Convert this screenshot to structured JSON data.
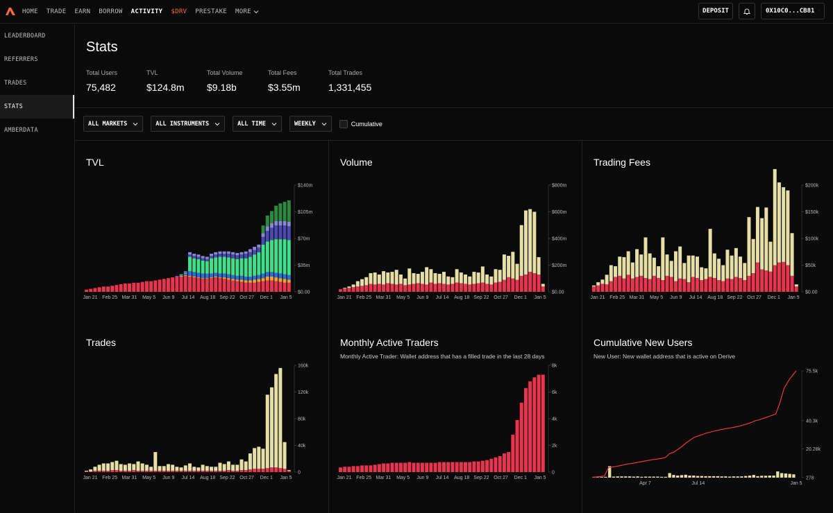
{
  "nav": {
    "items": [
      "HOME",
      "TRADE",
      "EARN",
      "BORROW",
      "ACTIVITY",
      "$DRV",
      "PRESTAKE",
      "MORE"
    ],
    "active": "ACTIVITY"
  },
  "topright": {
    "deposit": "DEPOSIT",
    "wallet": "0X10C0...CB81"
  },
  "sidebar": {
    "items": [
      "LEADERBOARD",
      "REFERRERS",
      "TRADES",
      "STATS",
      "AMBERDATA"
    ],
    "active": "STATS"
  },
  "page": {
    "title": "Stats"
  },
  "stats": [
    {
      "label": "Total Users",
      "value": "75,482"
    },
    {
      "label": "TVL",
      "value": "$124.8m"
    },
    {
      "label": "Total Volume",
      "value": "$9.18b"
    },
    {
      "label": "Total Fees",
      "value": "$3.55m"
    },
    {
      "label": "Total Trades",
      "value": "1,331,455"
    }
  ],
  "filters": {
    "markets": "ALL MARKETS",
    "instruments": "ALL INSTRUMENTS",
    "time": "ALL TIME",
    "interval": "WEEKLY",
    "cumulative": "Cumulative"
  },
  "colors": {
    "red": "#e8344e",
    "cream": "#e6dfa6",
    "green": "#2b8a3e",
    "mint": "#3fe08b",
    "indigo": "#4b4ab0",
    "lavender": "#8c86d6",
    "orange": "#f2a233",
    "blue": "#2d6fd6"
  },
  "chart_data": [
    {
      "id": "tvl",
      "type": "bar",
      "stacked": true,
      "title": "TVL",
      "subtitle": "",
      "xticks": [
        "Jan 21",
        "Feb 25",
        "Mar 31",
        "May 5",
        "Jun 9",
        "Jul 14",
        "Aug 18",
        "Sep 22",
        "Oct 27",
        "Dec 1",
        "Jan 5"
      ],
      "yticks": [
        "$140m",
        "$105m",
        "$70m",
        "$35m",
        "$0.00"
      ],
      "ymax": 140,
      "series": [
        {
          "name": "red",
          "color": "#e8344e",
          "values": [
            3,
            4,
            5,
            6,
            7,
            7,
            8,
            9,
            10,
            11,
            11,
            12,
            12,
            13,
            14,
            14,
            15,
            16,
            17,
            18,
            19,
            20,
            20,
            21,
            20,
            19,
            18,
            17,
            17,
            18,
            19,
            18,
            17,
            16,
            15,
            14,
            13,
            12,
            12,
            12,
            13,
            14,
            15,
            15,
            14,
            13,
            12,
            12
          ]
        },
        {
          "name": "orange",
          "color": "#f2a233",
          "values": [
            0,
            0,
            0,
            0,
            0,
            0,
            0,
            0,
            0,
            0,
            0,
            0,
            0,
            0,
            0,
            0,
            0,
            0,
            0,
            0,
            0,
            0,
            1,
            1,
            1,
            1,
            1,
            1,
            1,
            1,
            1,
            1,
            2,
            2,
            2,
            2,
            3,
            3,
            3,
            4,
            4,
            4,
            5,
            5,
            5,
            5,
            5,
            4
          ]
        },
        {
          "name": "blue",
          "color": "#2d6fd6",
          "values": [
            0,
            0,
            0,
            0,
            0,
            0,
            0,
            0,
            0,
            0,
            0,
            0,
            0,
            0,
            0,
            0,
            0,
            0,
            0,
            0,
            0,
            1,
            1,
            2,
            6,
            6,
            6,
            6,
            6,
            5,
            5,
            5,
            5,
            5,
            5,
            5,
            5,
            5,
            5,
            5,
            5,
            6,
            6,
            6,
            6,
            6,
            6,
            6
          ]
        },
        {
          "name": "mint",
          "color": "#3fe08b",
          "values": [
            0,
            0,
            0,
            0,
            0,
            0,
            0,
            0,
            0,
            0,
            0,
            0,
            0,
            0,
            0,
            0,
            0,
            0,
            0,
            0,
            0,
            0,
            1,
            1,
            19,
            18,
            18,
            17,
            16,
            20,
            20,
            22,
            22,
            22,
            22,
            22,
            23,
            24,
            26,
            28,
            30,
            38,
            40,
            42,
            44,
            45,
            46,
            46
          ]
        },
        {
          "name": "indigo",
          "color": "#4b4ab0",
          "values": [
            0,
            0,
            0,
            0,
            0,
            0,
            0,
            0,
            0,
            0,
            0,
            0,
            0,
            0,
            0,
            0,
            0,
            0,
            0,
            0,
            0,
            0,
            0,
            1,
            3,
            3,
            3,
            3,
            3,
            3,
            4,
            4,
            4,
            5,
            5,
            5,
            5,
            6,
            6,
            6,
            6,
            10,
            14,
            16,
            18,
            18,
            18,
            18
          ]
        },
        {
          "name": "lavender",
          "color": "#8c86d6",
          "values": [
            0,
            0,
            0,
            0,
            0,
            0,
            0,
            0,
            0,
            0,
            0,
            0,
            0,
            0,
            0,
            0,
            0,
            0,
            0,
            0,
            0,
            0,
            0,
            1,
            3,
            3,
            3,
            3,
            3,
            3,
            3,
            3,
            3,
            3,
            3,
            3,
            3,
            3,
            4,
            4,
            4,
            5,
            6,
            6,
            6,
            6,
            6,
            6
          ]
        },
        {
          "name": "green",
          "color": "#2b8a3e",
          "values": [
            0,
            0,
            0,
            0,
            0,
            0,
            0,
            0,
            0,
            0,
            0,
            0,
            0,
            0,
            0,
            0,
            0,
            0,
            0,
            0,
            0,
            0,
            0,
            0,
            0,
            0,
            0,
            0,
            0,
            0,
            0,
            0,
            0,
            0,
            0,
            0,
            0,
            0,
            0,
            0,
            0,
            10,
            14,
            16,
            20,
            23,
            25,
            28
          ]
        }
      ]
    },
    {
      "id": "volume",
      "type": "bar",
      "stacked": true,
      "title": "Volume",
      "subtitle": "",
      "xticks": [
        "Jan 21",
        "Feb 25",
        "Mar 31",
        "May 5",
        "Jun 9",
        "Jul 14",
        "Aug 18",
        "Sep 22",
        "Oct 27",
        "Dec 1",
        "Jan 5"
      ],
      "yticks": [
        "$800m",
        "$600m",
        "$400m",
        "$200m",
        "$0.00"
      ],
      "ymax": 800,
      "series": [
        {
          "name": "red",
          "color": "#e8344e",
          "values": [
            20,
            25,
            30,
            35,
            40,
            45,
            50,
            60,
            55,
            60,
            55,
            65,
            60,
            55,
            60,
            50,
            55,
            60,
            65,
            60,
            55,
            70,
            60,
            65,
            60,
            55,
            60,
            70,
            65,
            60,
            55,
            60,
            65,
            70,
            60,
            55,
            70,
            75,
            90,
            110,
            100,
            90,
            120,
            130,
            150,
            140,
            130,
            40
          ]
        },
        {
          "name": "cream",
          "color": "#e6dfa6",
          "values": [
            0,
            5,
            10,
            20,
            40,
            50,
            60,
            80,
            90,
            70,
            100,
            80,
            90,
            110,
            70,
            50,
            120,
            80,
            70,
            90,
            130,
            100,
            80,
            70,
            90,
            60,
            50,
            100,
            80,
            70,
            60,
            90,
            80,
            120,
            70,
            60,
            100,
            90,
            190,
            160,
            200,
            120,
            380,
            480,
            470,
            460,
            130,
            20
          ]
        }
      ]
    },
    {
      "id": "fees",
      "type": "bar",
      "stacked": true,
      "title": "Trading Fees",
      "subtitle": "",
      "xticks": [
        "Jan 21",
        "Feb 25",
        "Mar 31",
        "May 5",
        "Jun 9",
        "Jul 14",
        "Aug 18",
        "Sep 22",
        "Oct 27",
        "Dec 1",
        "Jan 5"
      ],
      "yticks": [
        "$200k",
        "$150k",
        "$100k",
        "$50k",
        "$0.00"
      ],
      "ymax": 200,
      "series": [
        {
          "name": "red",
          "color": "#e8344e",
          "values": [
            10,
            12,
            15,
            14,
            20,
            28,
            30,
            25,
            32,
            25,
            28,
            30,
            26,
            24,
            30,
            26,
            22,
            30,
            28,
            20,
            25,
            24,
            18,
            28,
            26,
            22,
            24,
            28,
            26,
            22,
            20,
            25,
            24,
            28,
            26,
            22,
            30,
            35,
            55,
            42,
            40,
            38,
            50,
            55,
            56,
            50,
            30,
            10
          ]
        },
        {
          "name": "cream",
          "color": "#e6dfa6",
          "values": [
            2,
            6,
            8,
            18,
            30,
            20,
            36,
            40,
            44,
            30,
            52,
            40,
            76,
            48,
            34,
            22,
            80,
            40,
            30,
            56,
            60,
            30,
            50,
            40,
            40,
            24,
            20,
            90,
            46,
            40,
            30,
            54,
            44,
            54,
            40,
            32,
            110,
            64,
            104,
            96,
            118,
            56,
            180,
            150,
            140,
            140,
            80,
            4
          ]
        }
      ]
    },
    {
      "id": "trades",
      "type": "bar",
      "stacked": true,
      "title": "Trades",
      "subtitle": "",
      "xticks": [
        "Jan 21",
        "Feb 25",
        "Mar 31",
        "May 5",
        "Jun 9",
        "Jul 14",
        "Aug 18",
        "Sep 22",
        "Oct 27",
        "Dec 1",
        "Jan 5"
      ],
      "yticks": [
        "160k",
        "120k",
        "80k",
        "40k",
        "0"
      ],
      "ymax": 160,
      "series": [
        {
          "name": "red",
          "color": "#e8344e",
          "values": [
            1,
            1,
            2,
            2,
            2,
            2,
            3,
            3,
            2,
            2,
            2,
            3,
            2,
            2,
            2,
            2,
            2,
            2,
            2,
            2,
            2,
            2,
            2,
            2,
            2,
            2,
            2,
            2,
            2,
            2,
            2,
            2,
            2,
            3,
            2,
            2,
            3,
            3,
            4,
            5,
            5,
            5,
            6,
            7,
            7,
            6,
            5,
            2
          ]
        },
        {
          "name": "cream",
          "color": "#e6dfa6",
          "values": [
            1,
            3,
            6,
            9,
            11,
            11,
            12,
            14,
            10,
            9,
            11,
            9,
            14,
            11,
            9,
            6,
            28,
            7,
            7,
            10,
            9,
            6,
            5,
            8,
            11,
            6,
            5,
            9,
            7,
            6,
            6,
            12,
            10,
            13,
            9,
            9,
            16,
            13,
            24,
            31,
            33,
            30,
            110,
            120,
            140,
            150,
            40,
            1
          ]
        }
      ]
    },
    {
      "id": "mat",
      "type": "bar",
      "stacked": false,
      "title": "Monthly Active Traders",
      "subtitle": "Monthly Active Trader: Wallet address that has a filled trade in the last 28 days",
      "xticks": [
        "Jan 21",
        "Feb 25",
        "Mar 31",
        "May 5",
        "Jun 9",
        "Jul 14",
        "Aug 18",
        "Sep 22",
        "Oct 27",
        "Dec 1",
        "Jan 5"
      ],
      "yticks": [
        "8k",
        "6k",
        "4k",
        "2k",
        "0"
      ],
      "ymax": 8,
      "series": [
        {
          "name": "red",
          "color": "#e8344e",
          "values": [
            0.35,
            0.4,
            0.4,
            0.45,
            0.45,
            0.5,
            0.5,
            0.5,
            0.55,
            0.6,
            0.65,
            0.65,
            0.7,
            0.7,
            0.7,
            0.7,
            0.75,
            0.7,
            0.7,
            0.7,
            0.7,
            0.7,
            0.7,
            0.75,
            0.75,
            0.75,
            0.75,
            0.75,
            0.75,
            0.75,
            0.75,
            0.8,
            0.8,
            0.85,
            0.9,
            1.0,
            1.1,
            1.2,
            1.4,
            1.5,
            2.8,
            3.9,
            5.2,
            6.3,
            6.8,
            7.1,
            7.3,
            7.3
          ]
        }
      ]
    },
    {
      "id": "users",
      "type": "line",
      "title": "Cumulative New Users",
      "subtitle": "New User: New wallet address that is active on Derive",
      "xticks": [
        "Apr 7",
        "Jul 14",
        "Jan 5"
      ],
      "yticks": [
        "75.5k",
        "40.3k",
        "20.28k",
        "278"
      ],
      "line": {
        "name": "cumulative",
        "color": "#e8344e",
        "values": [
          0.3,
          0.5,
          0.8,
          1.2,
          7,
          7.5,
          8,
          8.6,
          9.2,
          9.8,
          10.2,
          10.8,
          11.3,
          11.8,
          12.3,
          12.8,
          13.2,
          13.7,
          14.3,
          17,
          18,
          20,
          22,
          24.5,
          26.5,
          28.5,
          29.5,
          30.5,
          31.5,
          32.2,
          33,
          33.6,
          34.2,
          34.8,
          35.2,
          35.8,
          36.4,
          37.2,
          38,
          39,
          40.3,
          41,
          42,
          43,
          44,
          45,
          53,
          63,
          68,
          72,
          75.5
        ]
      },
      "bars": {
        "name": "new",
        "color": "#e6dfa6",
        "values": [
          0.3,
          0.2,
          0.3,
          0.4,
          5.5,
          0.5,
          0.6,
          0.6,
          0.6,
          0.6,
          0.5,
          0.6,
          0.4,
          0.5,
          0.5,
          0.5,
          0.5,
          0.4,
          0.4,
          2.2,
          1.3,
          1.0,
          1.2,
          1.4,
          1.0,
          1.0,
          0.8,
          0.8,
          0.7,
          0.7,
          0.7,
          0.7,
          0.6,
          0.6,
          0.5,
          0.6,
          0.6,
          0.6,
          0.8,
          1.0,
          1.3,
          0.7,
          0.9,
          0.9,
          1.0,
          1.0,
          3.0,
          2.2,
          2.0,
          1.8,
          1.6
        ]
      }
    }
  ]
}
